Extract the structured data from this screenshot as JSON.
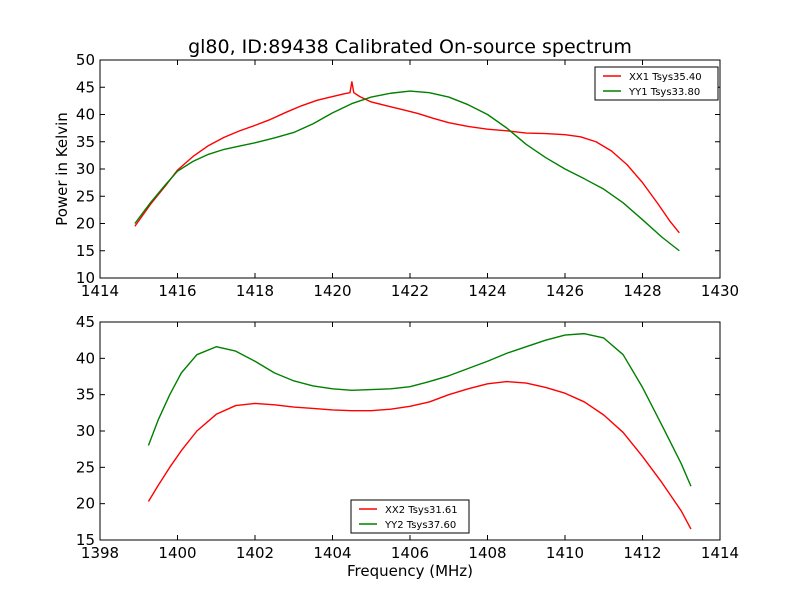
{
  "title": "gl80, ID:89438 Calibrated On-source spectrum",
  "chart_data": [
    {
      "type": "line",
      "title": "gl80, ID:89438 Calibrated On-source spectrum",
      "xlabel": "",
      "ylabel": "Power in Kelvin",
      "xlim": [
        1414,
        1430
      ],
      "ylim": [
        10,
        50
      ],
      "xticks": [
        1414,
        1416,
        1418,
        1420,
        1422,
        1424,
        1426,
        1428,
        1430
      ],
      "yticks": [
        10,
        15,
        20,
        25,
        30,
        35,
        40,
        45,
        50
      ],
      "grid": false,
      "legend_position": "top-right",
      "series": [
        {
          "name": "XX1 Tsys35.40",
          "color": "#ff0000",
          "x": [
            1414.9,
            1415.3,
            1415.7,
            1416.0,
            1416.4,
            1416.8,
            1417.2,
            1417.6,
            1418.0,
            1418.4,
            1418.8,
            1419.2,
            1419.6,
            1420.0,
            1420.3,
            1420.45,
            1420.5,
            1420.55,
            1420.7,
            1421.0,
            1421.4,
            1421.8,
            1422.2,
            1422.6,
            1423.0,
            1423.5,
            1424.0,
            1424.5,
            1425.0,
            1425.5,
            1426.0,
            1426.4,
            1426.8,
            1427.2,
            1427.6,
            1428.0,
            1428.4,
            1428.7,
            1428.95
          ],
          "y": [
            19.5,
            23.5,
            27.0,
            29.8,
            32.3,
            34.3,
            35.8,
            37.0,
            38.0,
            39.1,
            40.4,
            41.6,
            42.6,
            43.3,
            43.8,
            44.0,
            46.0,
            44.0,
            43.3,
            42.3,
            41.6,
            40.9,
            40.2,
            39.3,
            38.5,
            37.8,
            37.3,
            37.0,
            36.6,
            36.5,
            36.3,
            35.9,
            35.0,
            33.3,
            30.8,
            27.5,
            23.6,
            20.5,
            18.3
          ]
        },
        {
          "name": "YY1 Tsys33.80",
          "color": "#008000",
          "x": [
            1414.9,
            1415.3,
            1415.7,
            1416.0,
            1416.4,
            1416.8,
            1417.2,
            1417.6,
            1418.0,
            1418.5,
            1419.0,
            1419.5,
            1420.0,
            1420.5,
            1421.0,
            1421.5,
            1422.0,
            1422.5,
            1423.0,
            1423.5,
            1424.0,
            1424.5,
            1425.0,
            1425.5,
            1426.0,
            1426.5,
            1427.0,
            1427.5,
            1428.0,
            1428.5,
            1428.95
          ],
          "y": [
            20.0,
            23.8,
            27.2,
            29.6,
            31.4,
            32.7,
            33.6,
            34.2,
            34.8,
            35.7,
            36.7,
            38.3,
            40.3,
            42.0,
            43.2,
            43.9,
            44.3,
            44.0,
            43.2,
            41.8,
            40.0,
            37.5,
            34.5,
            32.1,
            30.0,
            28.2,
            26.3,
            23.8,
            20.7,
            17.5,
            15.0
          ]
        }
      ]
    },
    {
      "type": "line",
      "title": "",
      "xlabel": "Frequency (MHz)",
      "ylabel": "",
      "xlim": [
        1398,
        1414
      ],
      "ylim": [
        15,
        45
      ],
      "xticks": [
        1398,
        1400,
        1402,
        1404,
        1406,
        1408,
        1410,
        1412,
        1414
      ],
      "yticks": [
        15,
        20,
        25,
        30,
        35,
        40,
        45
      ],
      "grid": false,
      "legend_position": "bottom-center",
      "series": [
        {
          "name": "XX2 Tsys31.61",
          "color": "#ff0000",
          "x": [
            1399.25,
            1399.5,
            1399.8,
            1400.1,
            1400.5,
            1401.0,
            1401.5,
            1402.0,
            1402.5,
            1403.0,
            1403.5,
            1404.0,
            1404.5,
            1405.0,
            1405.5,
            1406.0,
            1406.5,
            1407.0,
            1407.5,
            1408.0,
            1408.5,
            1409.0,
            1409.5,
            1410.0,
            1410.5,
            1411.0,
            1411.5,
            1412.0,
            1412.5,
            1413.0,
            1413.25
          ],
          "y": [
            20.3,
            22.5,
            25.0,
            27.3,
            30.0,
            32.3,
            33.5,
            33.8,
            33.6,
            33.3,
            33.1,
            32.9,
            32.8,
            32.8,
            33.0,
            33.4,
            34.0,
            35.0,
            35.8,
            36.5,
            36.8,
            36.6,
            36.0,
            35.2,
            34.0,
            32.2,
            29.8,
            26.5,
            22.9,
            19.0,
            16.5
          ]
        },
        {
          "name": "YY2 Tsys37.60",
          "color": "#008000",
          "x": [
            1399.25,
            1399.5,
            1399.8,
            1400.1,
            1400.5,
            1401.0,
            1401.5,
            1402.0,
            1402.5,
            1403.0,
            1403.5,
            1404.0,
            1404.5,
            1405.0,
            1405.5,
            1406.0,
            1406.5,
            1407.0,
            1407.5,
            1408.0,
            1408.5,
            1409.0,
            1409.5,
            1410.0,
            1410.5,
            1411.0,
            1411.5,
            1412.0,
            1412.5,
            1413.0,
            1413.25
          ],
          "y": [
            28.0,
            31.5,
            35.0,
            38.0,
            40.5,
            41.6,
            41.0,
            39.6,
            38.0,
            36.9,
            36.2,
            35.8,
            35.6,
            35.7,
            35.8,
            36.1,
            36.8,
            37.6,
            38.6,
            39.6,
            40.7,
            41.6,
            42.5,
            43.2,
            43.4,
            42.8,
            40.5,
            36.0,
            30.8,
            25.5,
            22.4
          ]
        }
      ]
    }
  ]
}
